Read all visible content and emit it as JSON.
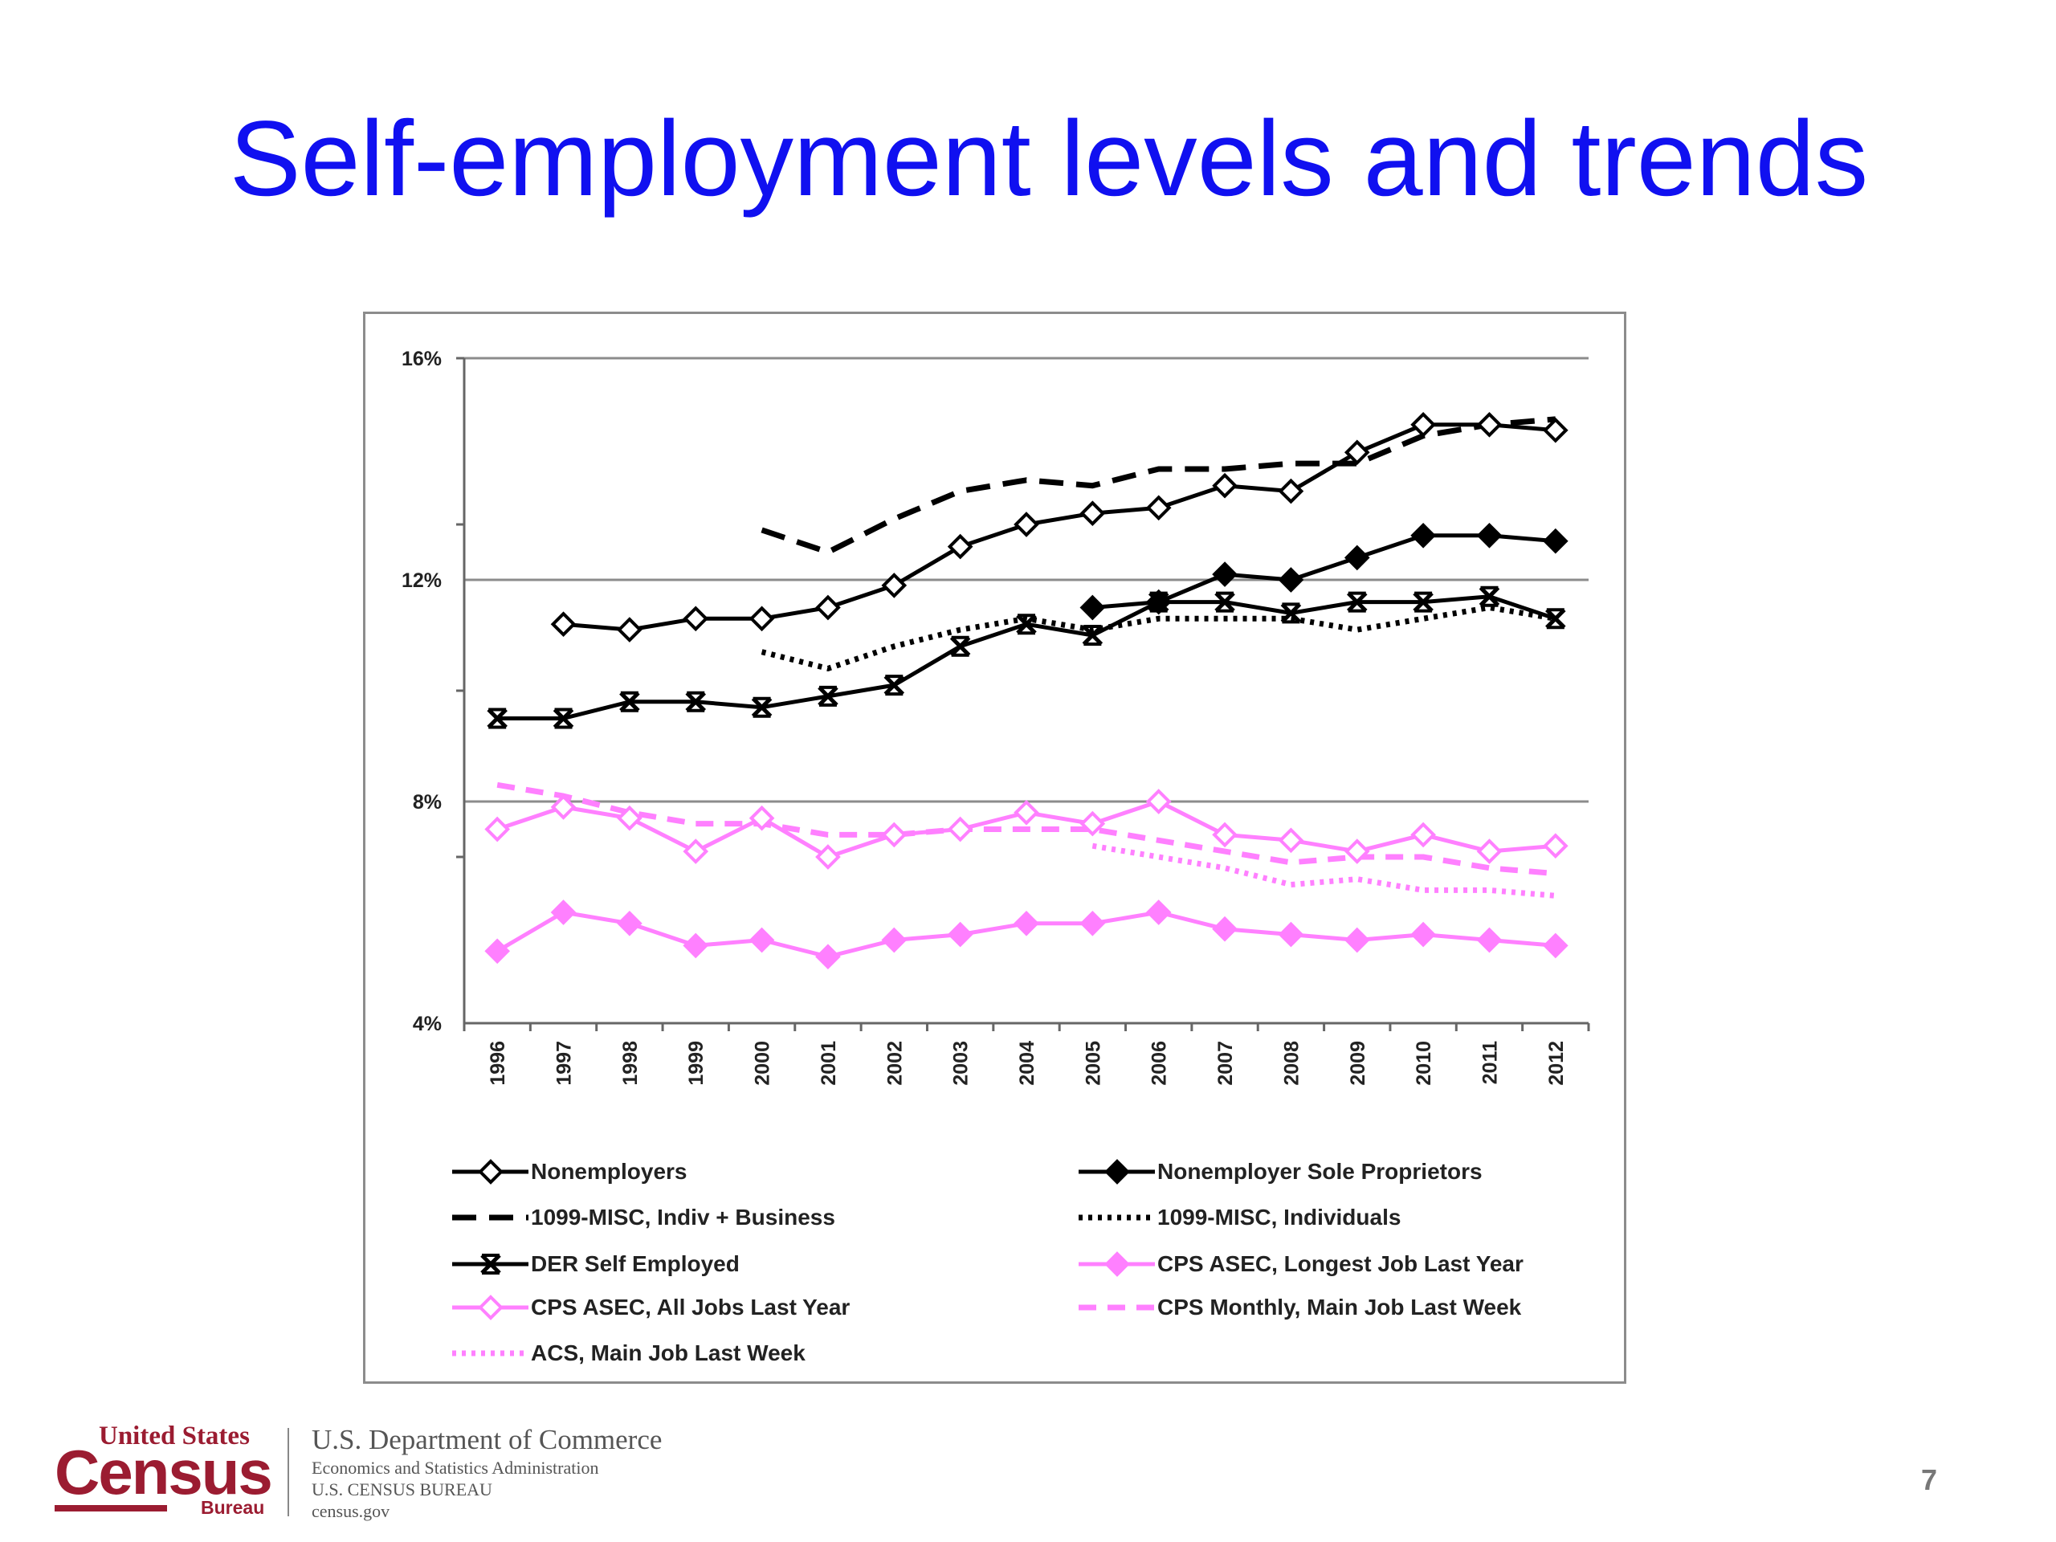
{
  "slide": {
    "title": "Self-employment levels and trends",
    "page_number": "7"
  },
  "footer": {
    "logo_top": "United States",
    "logo_main": "Census",
    "logo_bureau": "Bureau",
    "dept_line1": "U.S. Department of Commerce",
    "dept_line2": "Economics and Statistics Administration",
    "dept_line3": "U.S. CENSUS BUREAU",
    "dept_line4": "census.gov"
  },
  "chart_data": {
    "type": "line",
    "title": "",
    "xlabel": "",
    "ylabel": "",
    "x": [
      "1996",
      "1997",
      "1998",
      "1999",
      "2000",
      "2001",
      "2002",
      "2003",
      "2004",
      "2005",
      "2006",
      "2007",
      "2008",
      "2009",
      "2010",
      "2011",
      "2012"
    ],
    "ylim": [
      4,
      16
    ],
    "yticks": [
      "4%",
      "8%",
      "12%",
      "16%"
    ],
    "grid": true,
    "legend_position": "bottom",
    "series": [
      {
        "name": "Nonemployers",
        "color": "#000000",
        "dash": "solid",
        "marker": "diamond-open",
        "values": [
          null,
          11.2,
          11.1,
          11.3,
          11.3,
          11.5,
          11.9,
          12.6,
          13.0,
          13.2,
          13.3,
          13.7,
          13.6,
          14.3,
          14.8,
          14.8,
          14.7
        ]
      },
      {
        "name": "Nonemployer Sole Proprietors",
        "color": "#000000",
        "dash": "solid",
        "marker": "diamond-filled",
        "values": [
          null,
          null,
          null,
          null,
          null,
          null,
          null,
          null,
          null,
          11.5,
          11.6,
          12.1,
          12.0,
          12.4,
          12.8,
          12.8,
          12.7
        ]
      },
      {
        "name": "1099-MISC, Indiv + Business",
        "color": "#000000",
        "dash": "long-dash",
        "marker": "none",
        "values": [
          null,
          null,
          null,
          null,
          12.9,
          12.5,
          13.1,
          13.6,
          13.8,
          13.7,
          14.0,
          14.0,
          14.1,
          14.1,
          14.6,
          14.8,
          14.9
        ]
      },
      {
        "name": "1099-MISC, Individuals",
        "color": "#000000",
        "dash": "dotted",
        "marker": "none",
        "values": [
          null,
          null,
          null,
          null,
          10.7,
          10.4,
          10.8,
          11.1,
          11.3,
          11.1,
          11.3,
          11.3,
          11.3,
          11.1,
          11.3,
          11.5,
          11.3
        ]
      },
      {
        "name": "DER Self Employed",
        "color": "#000000",
        "dash": "solid",
        "marker": "x",
        "values": [
          9.5,
          9.5,
          9.8,
          9.8,
          9.7,
          9.9,
          10.1,
          10.8,
          11.2,
          11.0,
          11.6,
          11.6,
          11.4,
          11.6,
          11.6,
          11.7,
          11.3
        ]
      },
      {
        "name": "CPS ASEC, Longest Job Last Year",
        "color": "#ff80ff",
        "dash": "solid",
        "marker": "diamond-filled",
        "values": [
          5.3,
          6.0,
          5.8,
          5.4,
          5.5,
          5.2,
          5.5,
          5.6,
          5.8,
          5.8,
          6.0,
          5.7,
          5.6,
          5.5,
          5.6,
          5.5,
          5.4
        ]
      },
      {
        "name": "CPS ASEC, All Jobs Last Year",
        "color": "#ff80ff",
        "dash": "solid",
        "marker": "diamond-open",
        "values": [
          7.5,
          7.9,
          7.7,
          7.1,
          7.7,
          7.0,
          7.4,
          7.5,
          7.8,
          7.6,
          8.0,
          7.4,
          7.3,
          7.1,
          7.4,
          7.1,
          7.2
        ]
      },
      {
        "name": "CPS Monthly, Main Job Last Week",
        "color": "#ff80ff",
        "dash": "dashed",
        "marker": "none",
        "values": [
          8.3,
          8.1,
          7.8,
          7.6,
          7.6,
          7.4,
          7.4,
          7.5,
          7.5,
          7.5,
          7.3,
          7.1,
          6.9,
          7.0,
          7.0,
          6.8,
          6.7
        ]
      },
      {
        "name": "ACS, Main Job Last Week",
        "color": "#ff80ff",
        "dash": "dotted",
        "marker": "none",
        "values": [
          null,
          null,
          null,
          null,
          null,
          null,
          null,
          null,
          null,
          7.2,
          7.0,
          6.8,
          6.5,
          6.6,
          6.4,
          6.4,
          6.3
        ]
      }
    ],
    "legend_order": [
      "Nonemployers",
      "Nonemployer Sole Proprietors",
      "1099-MISC, Indiv + Business",
      "1099-MISC, Individuals",
      "DER Self Employed",
      "CPS ASEC, Longest Job Last Year",
      "CPS ASEC, All Jobs Last Year",
      "CPS Monthly, Main Job Last Week",
      "ACS, Main Job Last Week"
    ]
  }
}
